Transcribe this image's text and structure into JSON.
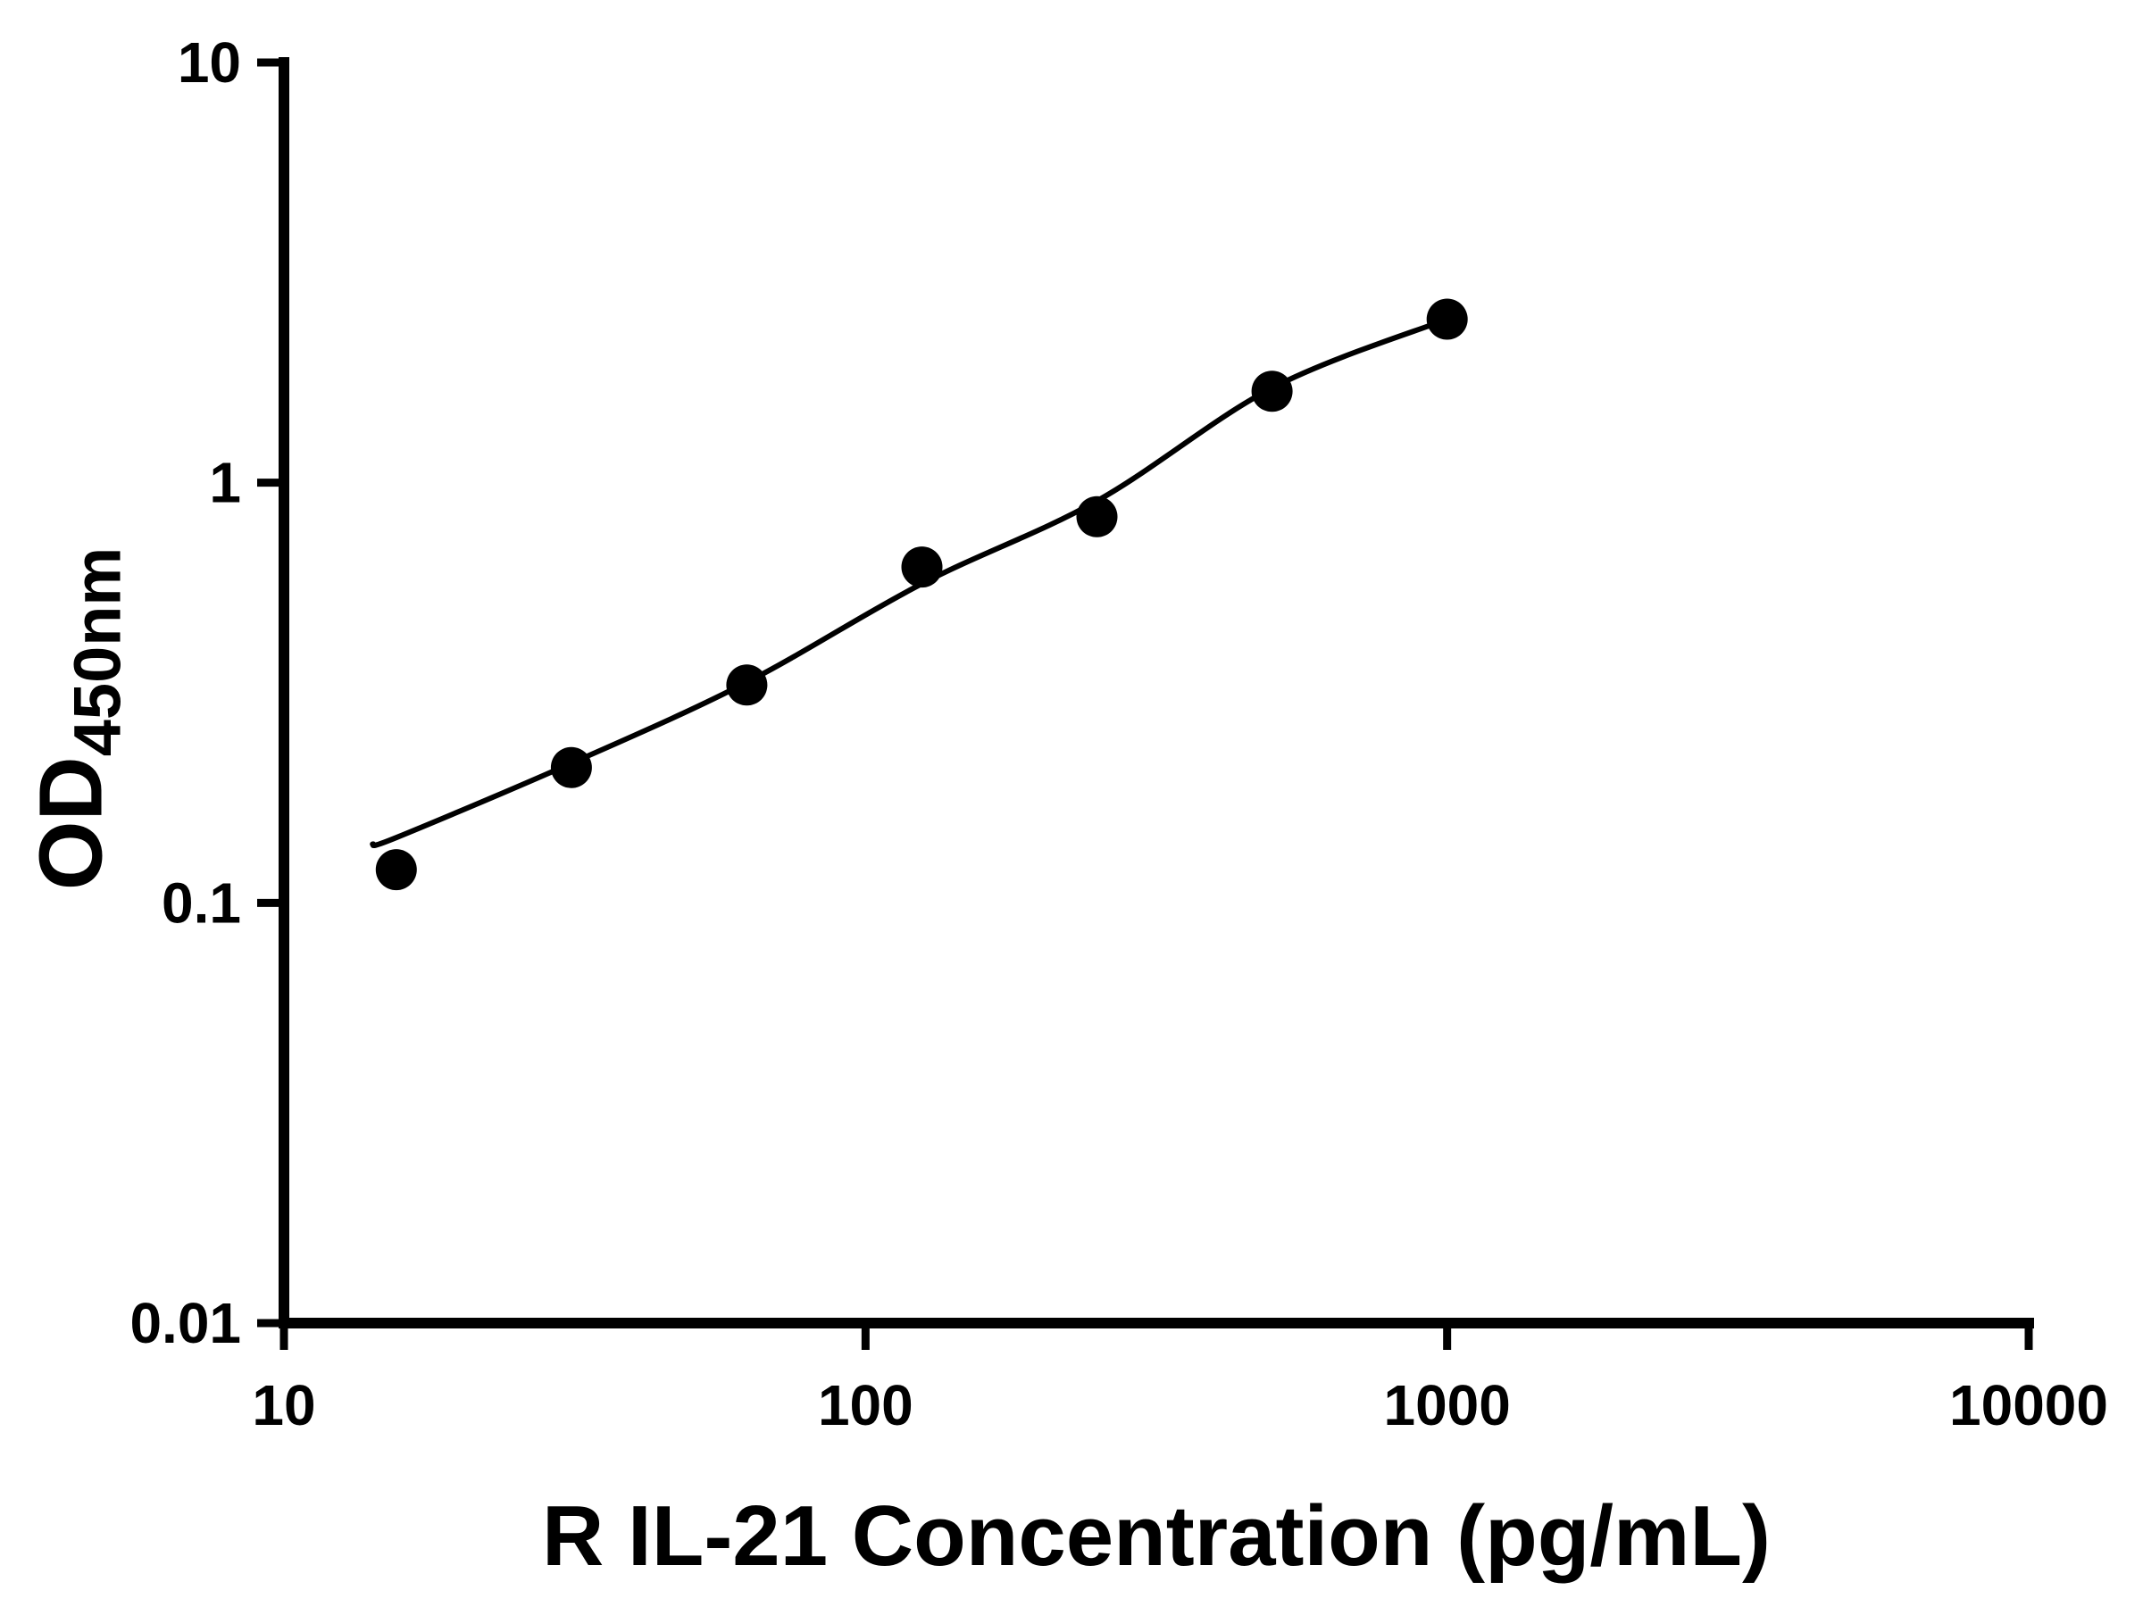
{
  "figure": {
    "background": "#ffffff"
  },
  "chart_data": {
    "type": "scatter",
    "title": "",
    "xlabel": "R IL-21 Concentration (pg/mL)",
    "ylabel_main": "OD",
    "ylabel_subscript": "450nm",
    "x_scale": "log10",
    "y_scale": "log10",
    "xlim": [
      10,
      10000
    ],
    "ylim": [
      0.01,
      10
    ],
    "x_tick_values": [
      10,
      100,
      1000,
      10000
    ],
    "x_tick_labels": [
      "10",
      "100",
      "1000",
      "10000"
    ],
    "y_tick_values": [
      10,
      1,
      0.1,
      0.01
    ],
    "y_tick_labels": [
      "10",
      "1",
      "0.1",
      "0.01"
    ],
    "grid": false,
    "legend": false,
    "marker_color": "#000000",
    "curve_color": "#000000",
    "points": [
      {
        "x": 15.6,
        "y": 0.12
      },
      {
        "x": 31.2,
        "y": 0.21
      },
      {
        "x": 62.5,
        "y": 0.33
      },
      {
        "x": 125,
        "y": 0.63
      },
      {
        "x": 250,
        "y": 0.83
      },
      {
        "x": 500,
        "y": 1.65
      },
      {
        "x": 1000,
        "y": 2.45
      }
    ],
    "curve_points": [
      {
        "x": 14.2,
        "y": 0.138
      },
      {
        "x": 15.6,
        "y": 0.143
      },
      {
        "x": 31.2,
        "y": 0.215
      },
      {
        "x": 62.5,
        "y": 0.335
      },
      {
        "x": 125,
        "y": 0.575
      },
      {
        "x": 250,
        "y": 0.905
      },
      {
        "x": 500,
        "y": 1.68
      },
      {
        "x": 1000,
        "y": 2.45
      }
    ]
  }
}
